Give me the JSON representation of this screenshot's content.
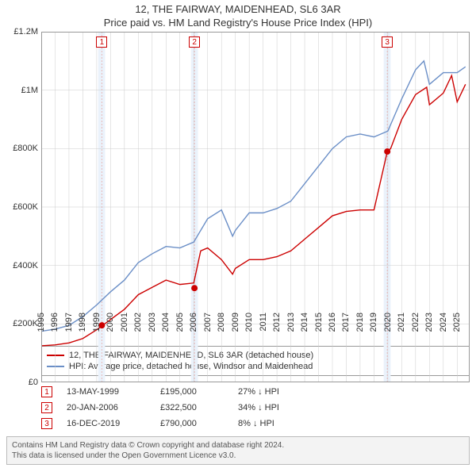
{
  "title": "12, THE FAIRWAY, MAIDENHEAD, SL6 3AR",
  "subtitle": "Price paid vs. HM Land Registry's House Price Index (HPI)",
  "chart": {
    "type": "line",
    "background_color": "#ffffff",
    "grid_color": "#cccccc",
    "xlim": [
      1995,
      2025.9
    ],
    "ylim": [
      0,
      1200000
    ],
    "yticks": [
      0,
      200000,
      400000,
      600000,
      800000,
      1000000,
      1200000
    ],
    "ytick_labels": [
      "£0",
      "£200K",
      "£400K",
      "£600K",
      "£800K",
      "£1M",
      "£1.2M"
    ],
    "xticks": [
      1995,
      1996,
      1997,
      1998,
      1999,
      2000,
      2001,
      2002,
      2003,
      2004,
      2005,
      2006,
      2007,
      2008,
      2009,
      2010,
      2011,
      2012,
      2013,
      2014,
      2015,
      2016,
      2017,
      2018,
      2019,
      2020,
      2021,
      2022,
      2023,
      2024,
      2025
    ],
    "label_fontsize": 11,
    "highlight_band_color": "#eaf2fb",
    "highlight_bands": [
      [
        1999.1,
        1999.6
      ],
      [
        2005.8,
        2006.3
      ],
      [
        2019.7,
        2020.2
      ]
    ],
    "sale_marker_line_color": "#e8b8b8",
    "series": [
      {
        "id": "price_paid",
        "label": "12, THE FAIRWAY, MAIDENHEAD, SL6 3AR (detached house)",
        "color": "#cc0000",
        "line_width": 1.4,
        "x": [
          1995,
          1996,
          1997,
          1998,
          1999,
          2000,
          2001,
          2002,
          2003,
          2004,
          2005,
          2006,
          2006.5,
          2007,
          2008,
          2008.8,
          2009,
          2010,
          2011,
          2012,
          2013,
          2014,
          2015,
          2016,
          2017,
          2018,
          2019,
          2019.96,
          2020.2,
          2021,
          2022,
          2022.8,
          2023,
          2024,
          2024.6,
          2025,
          2025.6
        ],
        "y": [
          125000,
          128000,
          135000,
          150000,
          180000,
          215000,
          250000,
          300000,
          325000,
          350000,
          335000,
          340000,
          450000,
          460000,
          420000,
          370000,
          390000,
          420000,
          420000,
          430000,
          450000,
          490000,
          530000,
          570000,
          585000,
          590000,
          590000,
          790000,
          800000,
          900000,
          985000,
          1010000,
          950000,
          990000,
          1050000,
          960000,
          1020000
        ]
      },
      {
        "id": "hpi",
        "label": "HPI: Average price, detached house, Windsor and Maidenhead",
        "color": "#6b8fc7",
        "line_width": 1.4,
        "x": [
          1995,
          1996,
          1997,
          1998,
          1999,
          2000,
          2001,
          2002,
          2003,
          2004,
          2005,
          2006,
          2007,
          2008,
          2008.8,
          2009,
          2010,
          2011,
          2012,
          2013,
          2014,
          2015,
          2016,
          2017,
          2018,
          2019,
          2020,
          2021,
          2022,
          2022.6,
          2023,
          2024,
          2025,
          2025.6
        ],
        "y": [
          175000,
          182000,
          195000,
          225000,
          265000,
          310000,
          350000,
          410000,
          440000,
          465000,
          460000,
          480000,
          560000,
          590000,
          500000,
          520000,
          580000,
          580000,
          595000,
          620000,
          680000,
          740000,
          800000,
          840000,
          850000,
          840000,
          860000,
          970000,
          1070000,
          1100000,
          1020000,
          1060000,
          1060000,
          1080000
        ]
      }
    ],
    "sale_markers": [
      {
        "n": "1",
        "x": 1999.37,
        "y": 195000
      },
      {
        "n": "2",
        "x": 2006.05,
        "y": 322500
      },
      {
        "n": "3",
        "x": 2019.96,
        "y": 790000
      }
    ]
  },
  "legend": [
    {
      "color": "#cc0000",
      "label": "12, THE FAIRWAY, MAIDENHEAD, SL6 3AR (detached house)"
    },
    {
      "color": "#6b8fc7",
      "label": "HPI: Average price, detached house, Windsor and Maidenhead"
    }
  ],
  "sales": [
    {
      "n": "1",
      "date": "13-MAY-1999",
      "price": "£195,000",
      "diff": "27% ↓ HPI"
    },
    {
      "n": "2",
      "date": "20-JAN-2006",
      "price": "£322,500",
      "diff": "34% ↓ HPI"
    },
    {
      "n": "3",
      "date": "16-DEC-2019",
      "price": "£790,000",
      "diff": "8% ↓ HPI"
    }
  ],
  "footer": {
    "line1": "Contains HM Land Registry data © Crown copyright and database right 2024.",
    "line2": "This data is licensed under the Open Government Licence v3.0."
  }
}
